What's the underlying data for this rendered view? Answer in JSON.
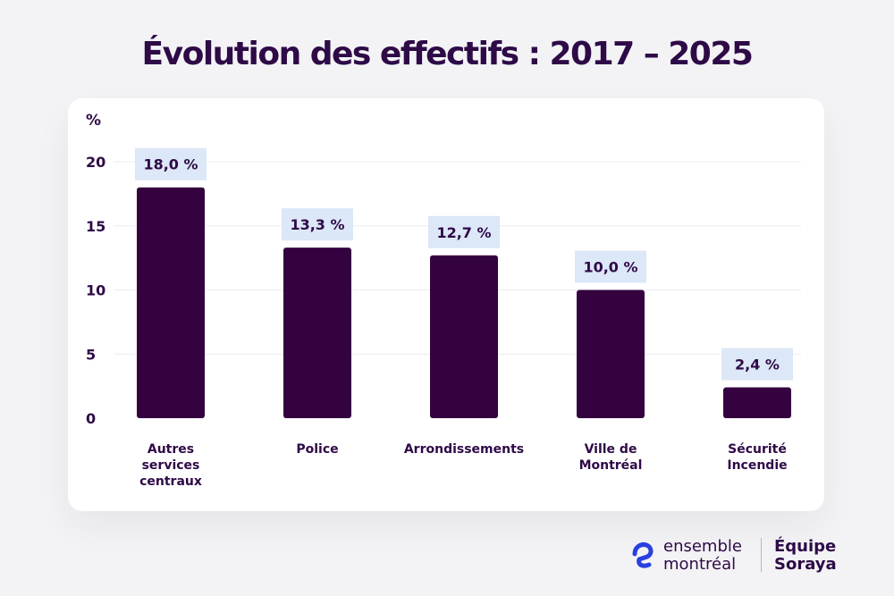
{
  "chart_data": {
    "type": "bar",
    "title": "Évolution des effectifs : 2017 – 2025",
    "ylabel": "%",
    "xlabel": "",
    "ylim": [
      0,
      20
    ],
    "yticks": [
      0,
      5,
      10,
      15,
      20
    ],
    "grid": true,
    "categories": [
      [
        "Autres",
        "services",
        "centraux"
      ],
      [
        "Police"
      ],
      [
        "Arrondissements"
      ],
      [
        "Ville de",
        "Montréal"
      ],
      [
        "Sécurité",
        "Incendie"
      ]
    ],
    "values": [
      18.0,
      13.3,
      12.7,
      10.0,
      2.4
    ],
    "data_labels": [
      "18,0 %",
      "13,3 %",
      "12,7 %",
      "10,0 %",
      "2,4 %"
    ],
    "colors": {
      "bar": "#34023f",
      "label_bg": "#dce7f7",
      "text": "#2e0a47",
      "grid": "#ececf0"
    }
  },
  "branding": {
    "logo_line1": "ensemble",
    "logo_line2": "montréal",
    "team_line1": "Équipe",
    "team_line2": "Soraya",
    "logo_color": "#2a3fe0"
  }
}
